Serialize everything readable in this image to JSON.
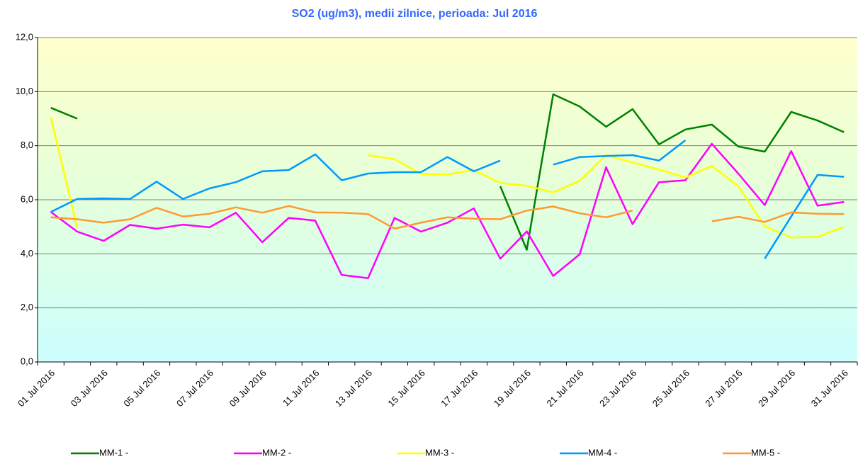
{
  "chart_data": {
    "type": "line",
    "title": "SO2 (ug/m3), medii zilnice, perioada:  Jul 2016",
    "categories": [
      "01 Jul 2016",
      null,
      "03 Jul 2016",
      null,
      "05 Jul 2016",
      null,
      "07 Jul 2016",
      null,
      "09 Jul 2016",
      null,
      "11 Jul 2016",
      null,
      "13 Jul 2016",
      null,
      "15 Jul 2016",
      null,
      "17 Jul 2016",
      null,
      "19 Jul 2016",
      null,
      "21 Jul 2016",
      null,
      "23 Jul 2016",
      null,
      "25 Jul 2016",
      null,
      "27 Jul 2016",
      null,
      "29 Jul 2016",
      null,
      "31 Jul 2016"
    ],
    "series": [
      {
        "name": "MM-1 -",
        "color": "#008000",
        "values": [
          9.4,
          9.0,
          null,
          null,
          null,
          null,
          null,
          null,
          null,
          null,
          null,
          null,
          null,
          null,
          null,
          null,
          null,
          6.5,
          4.15,
          9.9,
          9.45,
          8.7,
          9.35,
          8.05,
          8.6,
          8.78,
          7.97,
          7.78,
          9.25,
          8.93,
          8.5
        ]
      },
      {
        "name": "MM-2 -",
        "color": "#ff00ff",
        "values": [
          5.55,
          4.82,
          4.48,
          5.07,
          4.93,
          5.08,
          4.98,
          5.52,
          4.43,
          5.33,
          5.23,
          3.22,
          3.1,
          5.33,
          4.82,
          5.15,
          5.68,
          3.82,
          4.83,
          3.18,
          3.98,
          7.2,
          5.1,
          6.65,
          6.72,
          8.07,
          6.97,
          5.8,
          7.8,
          5.78,
          5.92
        ]
      },
      {
        "name": "MM-3 -",
        "color": "#ffff00",
        "values": [
          9.05,
          4.95,
          null,
          null,
          null,
          null,
          null,
          null,
          null,
          null,
          null,
          null,
          7.65,
          7.5,
          6.95,
          6.93,
          7.1,
          6.62,
          6.52,
          6.27,
          6.7,
          7.65,
          7.38,
          7.12,
          6.82,
          7.25,
          6.5,
          5.02,
          4.6,
          4.63,
          5.0
        ]
      },
      {
        "name": "MM-4 -",
        "color": "#0099ff",
        "values": [
          5.55,
          6.03,
          6.05,
          6.03,
          6.67,
          6.03,
          6.42,
          6.65,
          7.05,
          7.1,
          7.68,
          6.72,
          6.97,
          7.02,
          7.02,
          7.58,
          7.05,
          7.45,
          null,
          7.3,
          7.58,
          7.62,
          7.65,
          7.45,
          8.2,
          null,
          null,
          3.82,
          5.38,
          6.92,
          6.85
        ]
      },
      {
        "name": "MM-5 -",
        "color": "#ff9933",
        "values": [
          5.35,
          5.28,
          5.15,
          5.28,
          5.7,
          5.38,
          5.48,
          5.72,
          5.52,
          5.77,
          5.53,
          5.52,
          5.47,
          4.93,
          5.15,
          5.35,
          5.3,
          5.28,
          5.6,
          5.75,
          5.5,
          5.35,
          5.6,
          null,
          null,
          5.2,
          5.37,
          5.18,
          5.53,
          5.48,
          5.47
        ]
      }
    ],
    "ylim": [
      0,
      12
    ],
    "yticks": [
      {
        "value": 0,
        "label": "0,0"
      },
      {
        "value": 2,
        "label": "2,0"
      },
      {
        "value": 4,
        "label": "4,0"
      },
      {
        "value": 6,
        "label": "6,0"
      },
      {
        "value": 8,
        "label": "8,0"
      },
      {
        "value": 10,
        "label": "10,0"
      },
      {
        "value": 12,
        "label": "12,0"
      }
    ],
    "grid": true
  }
}
